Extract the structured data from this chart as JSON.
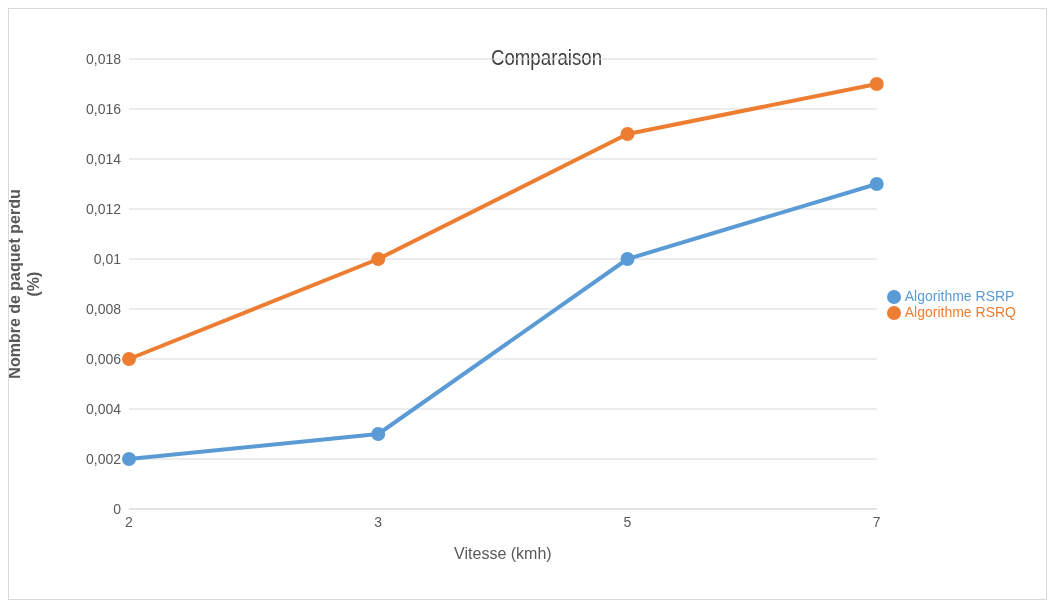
{
  "chart_data": {
    "type": "line",
    "title": "Comparaison",
    "xlabel": "Vitesse (kmh)",
    "ylabel": "Nombre de paquet perdu (%)",
    "categories": [
      "2",
      "3",
      "5",
      "7"
    ],
    "series": [
      {
        "name": "Algorithme RSRP",
        "color": "#5b9bd5",
        "values": [
          0.002,
          0.003,
          0.01,
          0.013
        ]
      },
      {
        "name": "Algorithme RSRQ",
        "color": "#ed7d31",
        "values": [
          0.006,
          0.01,
          0.015,
          0.017
        ]
      }
    ],
    "ylim": [
      0,
      0.018
    ],
    "yticks": [
      0,
      {
        "value": 0.002,
        "label": "0,002"
      },
      {
        "value": 0.004,
        "label": "0,004"
      },
      {
        "value": 0.006,
        "label": "0,006"
      },
      {
        "value": 0.008,
        "label": "0,008"
      },
      {
        "value": 0.01,
        "label": "0,01"
      },
      {
        "value": 0.012,
        "label": "0,012"
      },
      {
        "value": 0.014,
        "label": "0,014"
      },
      {
        "value": 0.016,
        "label": "0,016"
      },
      {
        "value": 0.018,
        "label": "0,018"
      }
    ],
    "grid": "y",
    "legend": "right",
    "marker": "circle",
    "line_style": "solid"
  }
}
